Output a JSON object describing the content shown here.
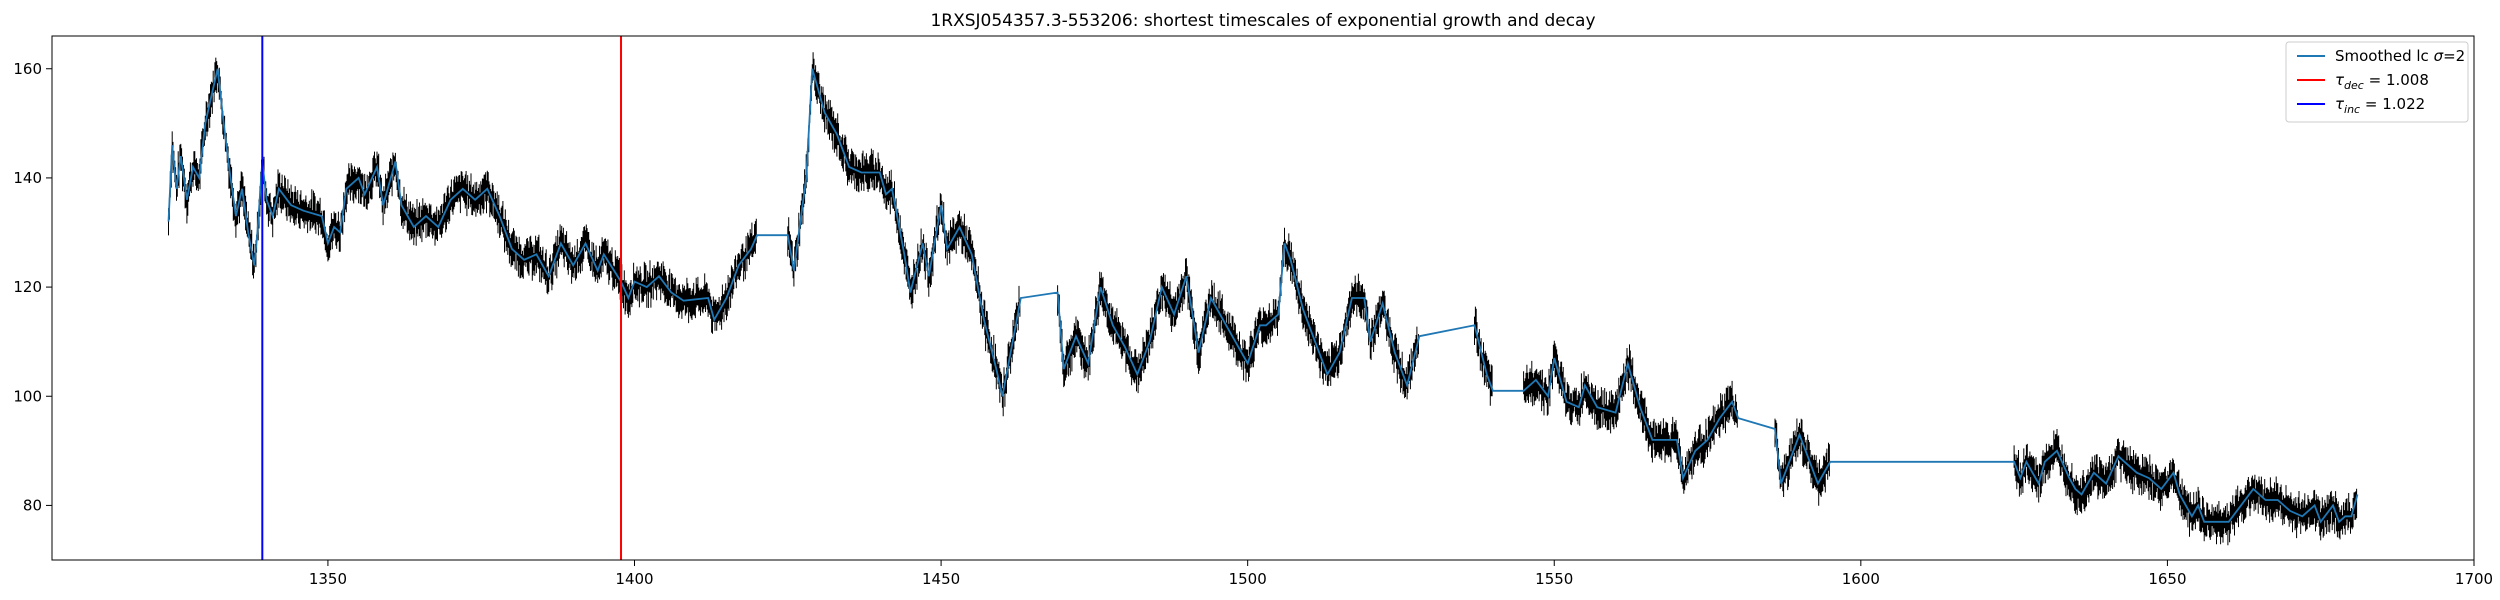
{
  "chart_data": {
    "type": "line",
    "title": "1RXSJ054357.3-553206: shortest timescales of exponential growth and decay",
    "xlabel": "",
    "ylabel": "",
    "xlim": [
      1305,
      1700
    ],
    "ylim": [
      70,
      166
    ],
    "xticks": [
      1350,
      1400,
      1450,
      1500,
      1550,
      1600,
      1650,
      1700
    ],
    "yticks": [
      80,
      100,
      120,
      140,
      160
    ],
    "grid": false,
    "legend_position": "top-right",
    "legend": [
      {
        "label_main": "Smoothed lc ",
        "label_sym": "σ",
        "label_tail": "=2",
        "color": "#1f77b4"
      },
      {
        "label_main": "τ",
        "label_sub": "dec",
        "label_tail": " = 1.008",
        "color": "#ff0000"
      },
      {
        "label_main": "τ",
        "label_sub": "inc",
        "label_tail": " = 1.022",
        "color": "#0000ff"
      }
    ],
    "series": [
      {
        "name": "Smoothed lc σ=2",
        "color": "#1f77b4",
        "points": [
          [
            1324,
            132
          ],
          [
            1324.6,
            146
          ],
          [
            1325.3,
            138
          ],
          [
            1326,
            144
          ],
          [
            1327,
            136
          ],
          [
            1328,
            142
          ],
          [
            1329,
            140
          ],
          [
            1330,
            150
          ],
          [
            1331,
            155
          ],
          [
            1332,
            160
          ],
          [
            1333,
            150
          ],
          [
            1334,
            141
          ],
          [
            1335,
            133
          ],
          [
            1336,
            138
          ],
          [
            1337,
            130
          ],
          [
            1338,
            124
          ],
          [
            1338.5,
            130
          ],
          [
            1339.3,
            143
          ],
          [
            1340,
            136
          ],
          [
            1341,
            133
          ],
          [
            1342,
            138
          ],
          [
            1344,
            135
          ],
          [
            1346,
            134
          ],
          [
            1349,
            133
          ],
          [
            1350,
            128
          ],
          [
            1351,
            131
          ],
          [
            1352,
            130
          ],
          [
            1353,
            138
          ],
          [
            1355,
            140
          ],
          [
            1356,
            137
          ],
          [
            1358,
            142
          ],
          [
            1359,
            135
          ],
          [
            1361,
            143
          ],
          [
            1362,
            135
          ],
          [
            1364,
            131
          ],
          [
            1366,
            133
          ],
          [
            1368,
            131
          ],
          [
            1370,
            136
          ],
          [
            1372,
            138
          ],
          [
            1374,
            136
          ],
          [
            1376,
            138
          ],
          [
            1378,
            133
          ],
          [
            1380,
            127
          ],
          [
            1382,
            125
          ],
          [
            1384,
            126
          ],
          [
            1386,
            122
          ],
          [
            1388,
            128
          ],
          [
            1390,
            124
          ],
          [
            1392,
            128
          ],
          [
            1394,
            123
          ],
          [
            1395,
            126
          ],
          [
            1397.8,
            121
          ],
          [
            1399,
            118
          ],
          [
            1400,
            121
          ],
          [
            1402,
            120
          ],
          [
            1404,
            122
          ],
          [
            1406,
            119
          ],
          [
            1408,
            117.5
          ],
          [
            1412,
            118
          ],
          [
            1413,
            114
          ],
          [
            1415,
            118
          ],
          [
            1417,
            124
          ],
          [
            1419,
            127
          ],
          [
            1420,
            129.5
          ],
          [
            1425,
            129.5
          ],
          [
            1426,
            123
          ],
          [
            1428,
            140
          ],
          [
            1429,
            160
          ],
          [
            1431,
            152
          ],
          [
            1433,
            148
          ],
          [
            1435,
            142
          ],
          [
            1437,
            141
          ],
          [
            1440,
            141
          ],
          [
            1441,
            137
          ],
          [
            1442,
            138
          ],
          [
            1444,
            126
          ],
          [
            1445,
            119
          ],
          [
            1447,
            128
          ],
          [
            1448,
            122
          ],
          [
            1450,
            135
          ],
          [
            1451,
            127
          ],
          [
            1453,
            131
          ],
          [
            1455,
            126
          ],
          [
            1457,
            114
          ],
          [
            1459,
            105
          ],
          [
            1460,
            100
          ],
          [
            1462,
            112
          ],
          [
            1463,
            118
          ],
          [
            1469,
            119
          ],
          [
            1470,
            105
          ],
          [
            1472,
            111
          ],
          [
            1474,
            106
          ],
          [
            1476,
            120
          ],
          [
            1478,
            113
          ],
          [
            1480,
            109
          ],
          [
            1482,
            104
          ],
          [
            1484,
            110
          ],
          [
            1486,
            120
          ],
          [
            1488,
            115
          ],
          [
            1490,
            122
          ],
          [
            1492,
            108
          ],
          [
            1494,
            118
          ],
          [
            1496,
            114
          ],
          [
            1498,
            110
          ],
          [
            1500,
            106
          ],
          [
            1502,
            113
          ],
          [
            1503,
            113
          ],
          [
            1505,
            115
          ],
          [
            1506,
            128
          ],
          [
            1507,
            125
          ],
          [
            1509,
            116
          ],
          [
            1511,
            110
          ],
          [
            1513,
            104
          ],
          [
            1515,
            108
          ],
          [
            1517,
            118
          ],
          [
            1519,
            118
          ],
          [
            1520,
            110
          ],
          [
            1522,
            117
          ],
          [
            1524,
            108
          ],
          [
            1526,
            102
          ],
          [
            1528,
            111
          ],
          [
            1537,
            113
          ],
          [
            1539,
            104
          ],
          [
            1540,
            101
          ],
          [
            1545,
            101
          ],
          [
            1547,
            103
          ],
          [
            1549,
            100
          ],
          [
            1550,
            107
          ],
          [
            1552,
            99
          ],
          [
            1554,
            98
          ],
          [
            1555,
            102
          ],
          [
            1557,
            98
          ],
          [
            1560,
            97
          ],
          [
            1562,
            106
          ],
          [
            1564,
            98
          ],
          [
            1566,
            92
          ],
          [
            1570,
            92
          ],
          [
            1571,
            85
          ],
          [
            1573,
            90
          ],
          [
            1575,
            92
          ],
          [
            1577,
            96
          ],
          [
            1579,
            99
          ],
          [
            1580,
            96
          ],
          [
            1586,
            94
          ],
          [
            1587,
            84
          ],
          [
            1589,
            90
          ],
          [
            1590,
            93
          ],
          [
            1592,
            87
          ],
          [
            1593,
            84
          ],
          [
            1595,
            88
          ],
          [
            1625,
            88
          ],
          [
            1626,
            85
          ],
          [
            1627,
            88
          ],
          [
            1628,
            86
          ],
          [
            1629,
            84
          ],
          [
            1630,
            88
          ],
          [
            1632,
            90
          ],
          [
            1634,
            85
          ],
          [
            1635,
            83
          ],
          [
            1636,
            82
          ],
          [
            1638,
            86
          ],
          [
            1640,
            84
          ],
          [
            1642,
            89
          ],
          [
            1643,
            88
          ],
          [
            1645,
            86
          ],
          [
            1647,
            85
          ],
          [
            1649,
            83
          ],
          [
            1651,
            86
          ],
          [
            1652,
            82
          ],
          [
            1654,
            78
          ],
          [
            1655,
            80
          ],
          [
            1656,
            77
          ],
          [
            1657,
            77
          ],
          [
            1658,
            77
          ],
          [
            1660,
            77
          ],
          [
            1662,
            80
          ],
          [
            1664,
            83
          ],
          [
            1666,
            81
          ],
          [
            1668,
            81
          ],
          [
            1670,
            79
          ],
          [
            1672,
            78
          ],
          [
            1674,
            80
          ],
          [
            1675,
            77
          ],
          [
            1677,
            80
          ],
          [
            1678,
            77
          ],
          [
            1679,
            78
          ],
          [
            1680,
            78
          ],
          [
            1681,
            82
          ]
        ]
      }
    ],
    "vlines": [
      {
        "x": 1339.3,
        "color": "#0000ff",
        "legend_index": 2
      },
      {
        "x": 1397.8,
        "color": "#ff0000",
        "legend_index": 1
      }
    ]
  }
}
